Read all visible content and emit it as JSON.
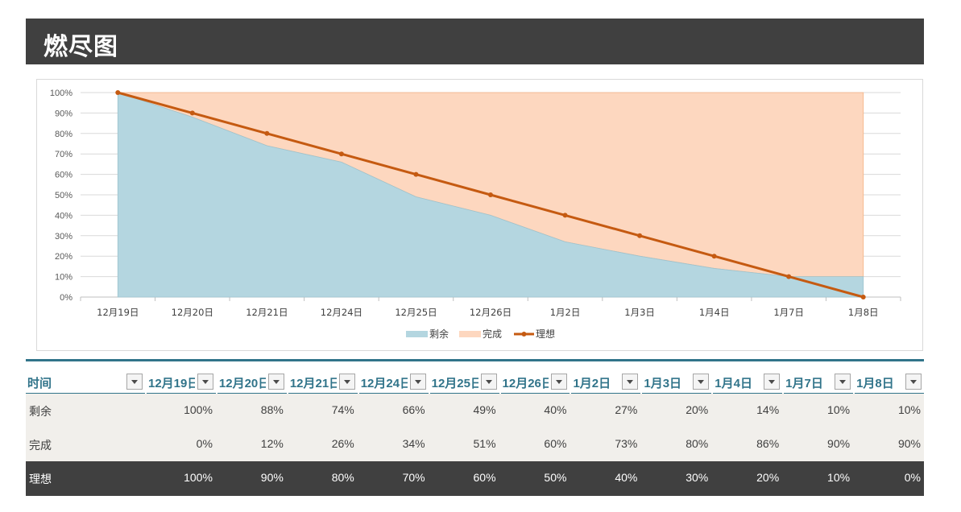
{
  "title": "燃尽图",
  "chart_data": {
    "type": "area",
    "categories": [
      "12月19日",
      "12月20日",
      "12月21日",
      "12月24日",
      "12月25日",
      "12月26日",
      "1月2日",
      "1月3日",
      "1月4日",
      "1月7日",
      "1月8日"
    ],
    "series": [
      {
        "name": "剩余",
        "kind": "area",
        "color": "#b4d6e0",
        "values": [
          100,
          88,
          74,
          66,
          49,
          40,
          27,
          20,
          14,
          10,
          10
        ]
      },
      {
        "name": "完成",
        "kind": "area",
        "color": "#fdd7bf",
        "values": [
          0,
          12,
          26,
          34,
          51,
          60,
          73,
          80,
          86,
          90,
          90
        ]
      },
      {
        "name": "理想",
        "kind": "line",
        "color": "#c55a11",
        "values": [
          100,
          90,
          80,
          70,
          60,
          50,
          40,
          30,
          20,
          10,
          0
        ]
      }
    ],
    "stacked": true,
    "ylim": [
      0,
      100
    ],
    "yticks": [
      "0%",
      "10%",
      "20%",
      "30%",
      "40%",
      "50%",
      "60%",
      "70%",
      "80%",
      "90%",
      "100%"
    ],
    "grid": true,
    "legend": "bottom"
  },
  "table": {
    "header_label": "时间",
    "columns": [
      "12月19日",
      "12月20日",
      "12月21日",
      "12月24日",
      "12月25日",
      "12月26日",
      "1月2日",
      "1月3日",
      "1月4日",
      "1月7日",
      "1月8日"
    ],
    "rows": [
      {
        "label": "剩余",
        "values": [
          "100%",
          "88%",
          "74%",
          "66%",
          "49%",
          "40%",
          "27%",
          "20%",
          "14%",
          "10%",
          "10%"
        ]
      },
      {
        "label": "完成",
        "values": [
          "0%",
          "12%",
          "26%",
          "34%",
          "51%",
          "60%",
          "73%",
          "80%",
          "86%",
          "90%",
          "90%"
        ]
      },
      {
        "label": "理想",
        "values": [
          "100%",
          "90%",
          "80%",
          "70%",
          "60%",
          "50%",
          "40%",
          "30%",
          "20%",
          "10%",
          "0%"
        ]
      }
    ]
  }
}
